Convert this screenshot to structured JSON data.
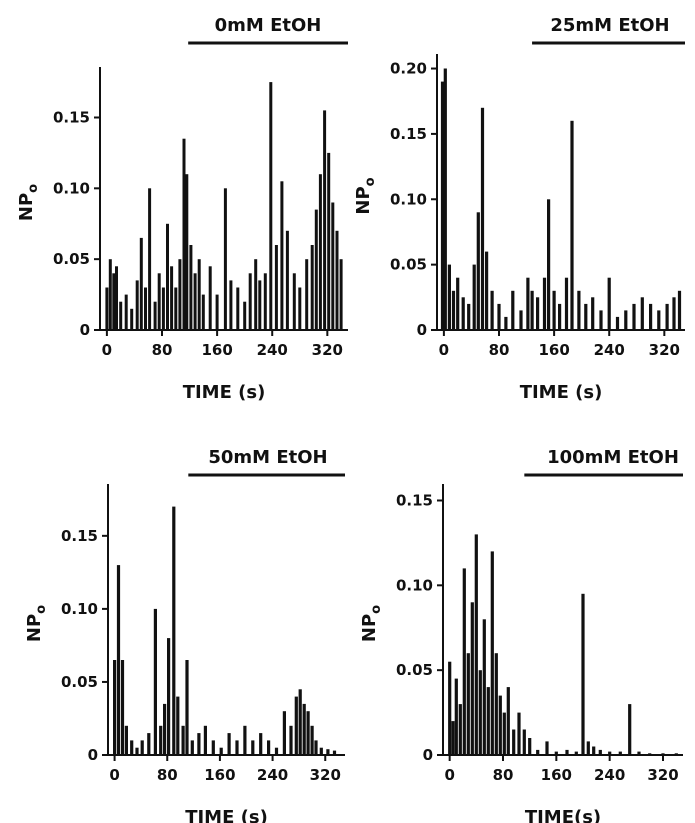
{
  "chart_data": [
    {
      "type": "bar",
      "title": "0mM EtOH",
      "xlabel": "TIME (s)",
      "ylabel": "NPo",
      "ylabel_main": "NP",
      "ylabel_sub": "o",
      "xlim": [
        -10,
        350
      ],
      "ylim": [
        0,
        0.18
      ],
      "xticks": [
        0,
        80,
        160,
        240,
        320
      ],
      "xtick_labels": [
        "0",
        "80",
        "160",
        "240",
        "320"
      ],
      "yticks": [
        0,
        0.05,
        0.1,
        0.15
      ],
      "ytick_labels": [
        "0",
        "0.05",
        "0.10",
        "0.15"
      ],
      "treatment_bar": [
        118,
        350
      ],
      "x": [
        0,
        5,
        10,
        14,
        20,
        28,
        36,
        44,
        50,
        56,
        62,
        70,
        76,
        82,
        88,
        94,
        100,
        106,
        112,
        116,
        122,
        128,
        134,
        140,
        150,
        160,
        172,
        180,
        190,
        200,
        208,
        216,
        222,
        230,
        238,
        246,
        254,
        262,
        272,
        280,
        290,
        298,
        304,
        310,
        316,
        322,
        328,
        334,
        340
      ],
      "values": [
        0.03,
        0.05,
        0.04,
        0.045,
        0.02,
        0.025,
        0.015,
        0.035,
        0.065,
        0.03,
        0.1,
        0.02,
        0.04,
        0.03,
        0.075,
        0.045,
        0.03,
        0.05,
        0.135,
        0.11,
        0.06,
        0.04,
        0.05,
        0.025,
        0.045,
        0.025,
        0.1,
        0.035,
        0.03,
        0.02,
        0.04,
        0.05,
        0.035,
        0.04,
        0.175,
        0.06,
        0.105,
        0.07,
        0.04,
        0.03,
        0.05,
        0.06,
        0.085,
        0.11,
        0.155,
        0.125,
        0.09,
        0.07,
        0.05
      ]
    },
    {
      "type": "bar",
      "title": "25mM EtOH",
      "xlabel": "TIME (s)",
      "ylabel": "NPo",
      "ylabel_main": "NP",
      "ylabel_sub": "o",
      "xlim": [
        -10,
        350
      ],
      "ylim": [
        0,
        0.205
      ],
      "xticks": [
        0,
        80,
        160,
        240,
        320
      ],
      "xtick_labels": [
        "0",
        "80",
        "160",
        "240",
        "320"
      ],
      "yticks": [
        0,
        0.05,
        0.1,
        0.15,
        0.2
      ],
      "ytick_labels": [
        "0",
        "0.05",
        "0.10",
        "0.15",
        "0.20"
      ],
      "treatment_bar": [
        128,
        350
      ],
      "x": [
        -2,
        2,
        8,
        14,
        20,
        28,
        36,
        44,
        50,
        56,
        62,
        70,
        80,
        90,
        100,
        112,
        122,
        128,
        136,
        146,
        152,
        160,
        168,
        178,
        186,
        196,
        206,
        216,
        228,
        240,
        252,
        264,
        276,
        288,
        300,
        312,
        324,
        334,
        342
      ],
      "values": [
        0.19,
        0.2,
        0.05,
        0.03,
        0.04,
        0.025,
        0.02,
        0.05,
        0.09,
        0.17,
        0.06,
        0.03,
        0.02,
        0.01,
        0.03,
        0.015,
        0.04,
        0.03,
        0.025,
        0.04,
        0.1,
        0.03,
        0.02,
        0.04,
        0.16,
        0.03,
        0.02,
        0.025,
        0.015,
        0.04,
        0.01,
        0.015,
        0.02,
        0.025,
        0.02,
        0.015,
        0.02,
        0.025,
        0.03
      ]
    },
    {
      "type": "bar",
      "title": "50mM EtOH",
      "xlabel": "TIME (s)",
      "ylabel": "NPo",
      "ylabel_main": "NP",
      "ylabel_sub": "o",
      "xlim": [
        -10,
        350
      ],
      "ylim": [
        0,
        0.18
      ],
      "xticks": [
        0,
        80,
        160,
        240,
        320
      ],
      "xtick_labels": [
        "0",
        "80",
        "160",
        "240",
        "320"
      ],
      "yticks": [
        0,
        0.05,
        0.1,
        0.15
      ],
      "ytick_labels": [
        "0",
        "0.05",
        "0.10",
        "0.15"
      ],
      "treatment_bar": [
        112,
        350
      ],
      "x": [
        0,
        6,
        12,
        18,
        26,
        34,
        42,
        52,
        62,
        70,
        76,
        82,
        90,
        96,
        104,
        110,
        118,
        128,
        138,
        150,
        162,
        174,
        186,
        198,
        210,
        222,
        234,
        246,
        258,
        268,
        276,
        282,
        288,
        294,
        300,
        306,
        314,
        324,
        334
      ],
      "values": [
        0.065,
        0.13,
        0.065,
        0.02,
        0.01,
        0.005,
        0.01,
        0.015,
        0.1,
        0.02,
        0.035,
        0.08,
        0.17,
        0.04,
        0.02,
        0.065,
        0.01,
        0.015,
        0.02,
        0.01,
        0.005,
        0.015,
        0.01,
        0.02,
        0.01,
        0.015,
        0.01,
        0.005,
        0.03,
        0.02,
        0.04,
        0.045,
        0.035,
        0.03,
        0.02,
        0.01,
        0.005,
        0.004,
        0.003
      ]
    },
    {
      "type": "bar",
      "title": "100mM EtOH",
      "xlabel": "TIME(s)",
      "ylabel": "NPo",
      "ylabel_main": "NP",
      "ylabel_sub": "o",
      "xlim": [
        -10,
        350
      ],
      "ylim": [
        0,
        0.155
      ],
      "xticks": [
        0,
        80,
        160,
        240,
        320
      ],
      "xtick_labels": [
        "0",
        "80",
        "160",
        "240",
        "320"
      ],
      "yticks": [
        0,
        0.05,
        0.1,
        0.15
      ],
      "ytick_labels": [
        "0",
        "0.05",
        "0.10",
        "0.15"
      ],
      "treatment_bar": [
        112,
        350
      ],
      "x": [
        0,
        5,
        10,
        16,
        22,
        28,
        34,
        40,
        46,
        52,
        58,
        64,
        70,
        76,
        82,
        88,
        96,
        104,
        112,
        120,
        132,
        146,
        160,
        176,
        190,
        200,
        208,
        216,
        226,
        240,
        256,
        270,
        284,
        300,
        320,
        340
      ],
      "values": [
        0.055,
        0.02,
        0.045,
        0.03,
        0.11,
        0.06,
        0.09,
        0.13,
        0.05,
        0.08,
        0.04,
        0.12,
        0.06,
        0.035,
        0.025,
        0.04,
        0.015,
        0.025,
        0.015,
        0.01,
        0.003,
        0.008,
        0.002,
        0.003,
        0.002,
        0.095,
        0.008,
        0.005,
        0.003,
        0.002,
        0.002,
        0.03,
        0.002,
        0.001,
        0.001,
        0.001
      ]
    }
  ]
}
